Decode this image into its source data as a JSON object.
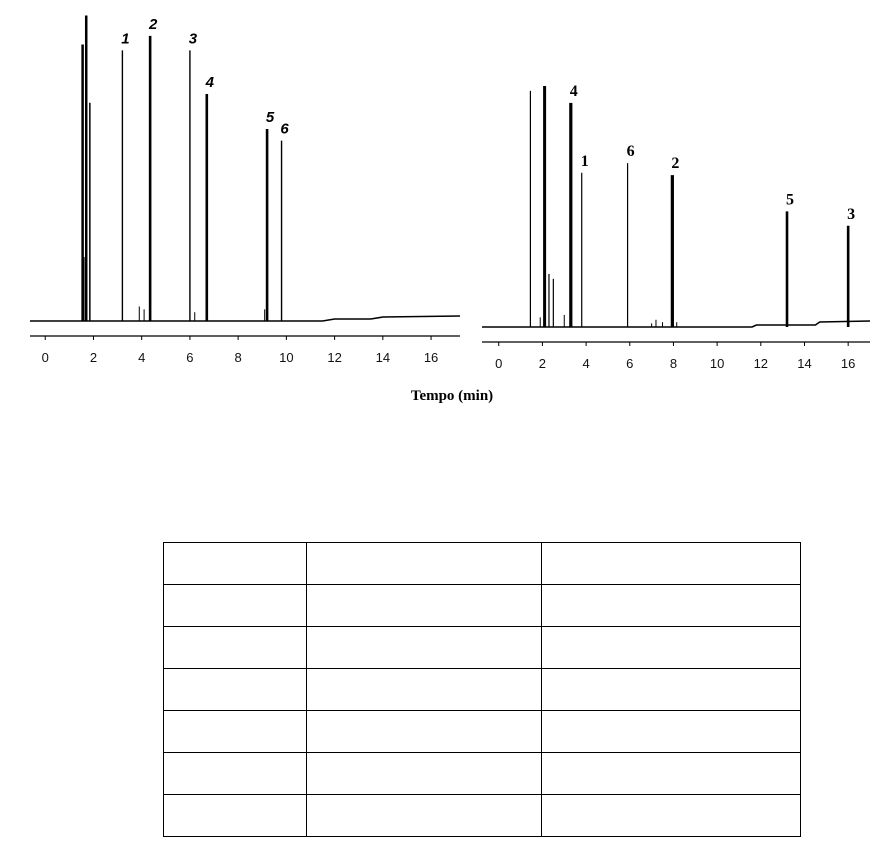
{
  "chart_data": [
    {
      "type": "line",
      "x_ticks": [
        0,
        2,
        4,
        6,
        8,
        10,
        12,
        14,
        16
      ],
      "xlim": [
        -0.3,
        17.2
      ],
      "peaks": [
        {
          "label": "1",
          "t": 3.2,
          "h": 0.93,
          "w": 1.4
        },
        {
          "label": "2",
          "t": 4.35,
          "h": 0.98,
          "w": 2.6
        },
        {
          "label": "3",
          "t": 6.0,
          "h": 0.93,
          "w": 1.4
        },
        {
          "label": "4",
          "t": 6.7,
          "h": 0.78,
          "w": 2.6
        },
        {
          "label": "5",
          "t": 9.2,
          "h": 0.66,
          "w": 2.6
        },
        {
          "label": "6",
          "t": 9.8,
          "h": 0.62,
          "w": 1.4
        }
      ]
    },
    {
      "type": "line",
      "x_ticks": [
        0,
        2,
        4,
        6,
        8,
        10,
        12,
        14,
        16
      ],
      "xlim": [
        -0.4,
        17.0
      ],
      "peaks": [
        {
          "label": "4",
          "t": 3.3,
          "h": 0.93,
          "w": 3.2
        },
        {
          "label": "1",
          "t": 3.8,
          "h": 0.64,
          "w": 1.2
        },
        {
          "label": "6",
          "t": 5.9,
          "h": 0.68,
          "w": 1.2
        },
        {
          "label": "2",
          "t": 7.95,
          "h": 0.63,
          "w": 3.2
        },
        {
          "label": "5",
          "t": 13.2,
          "h": 0.48,
          "w": 2.6
        },
        {
          "label": "3",
          "t": 16.0,
          "h": 0.42,
          "w": 2.6
        }
      ]
    }
  ],
  "xlabel": "Tempo (min)",
  "table": {
    "rows": [
      [
        "",
        "",
        ""
      ],
      [
        "",
        "",
        ""
      ],
      [
        "",
        "",
        ""
      ],
      [
        "",
        "",
        ""
      ],
      [
        "",
        "",
        ""
      ],
      [
        "",
        "",
        ""
      ],
      [
        "",
        "",
        ""
      ]
    ]
  }
}
